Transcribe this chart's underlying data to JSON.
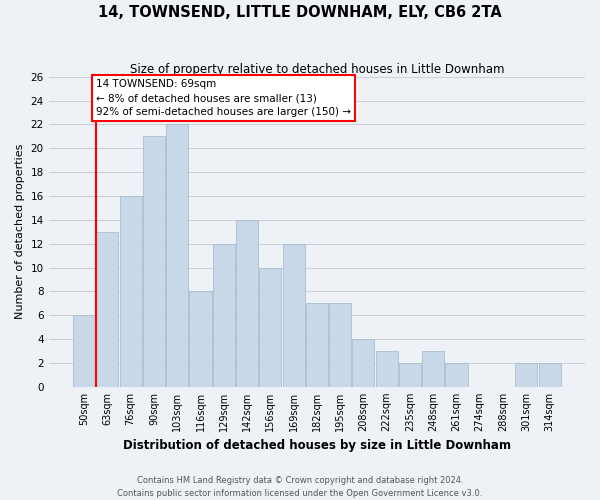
{
  "title": "14, TOWNSEND, LITTLE DOWNHAM, ELY, CB6 2TA",
  "subtitle": "Size of property relative to detached houses in Little Downham",
  "xlabel": "Distribution of detached houses by size in Little Downham",
  "ylabel": "Number of detached properties",
  "bar_labels": [
    "50sqm",
    "63sqm",
    "76sqm",
    "90sqm",
    "103sqm",
    "116sqm",
    "129sqm",
    "142sqm",
    "156sqm",
    "169sqm",
    "182sqm",
    "195sqm",
    "208sqm",
    "222sqm",
    "235sqm",
    "248sqm",
    "261sqm",
    "274sqm",
    "288sqm",
    "301sqm",
    "314sqm"
  ],
  "bar_values": [
    6,
    13,
    16,
    21,
    22,
    8,
    12,
    14,
    10,
    12,
    7,
    7,
    4,
    3,
    2,
    3,
    2,
    0,
    0,
    2,
    2
  ],
  "bar_color": "#c8d8e8",
  "bar_edge_color": "#a8bece",
  "grid_color": "#c8d0d8",
  "background_color": "#eef2f6",
  "annotation_line1": "14 TOWNSEND: 69sqm",
  "annotation_line2": "← 8% of detached houses are smaller (13)",
  "annotation_line3": "92% of semi-detached houses are larger (150) →",
  "red_line_bar_index": 1,
  "ylim": [
    0,
    26
  ],
  "yticks": [
    0,
    2,
    4,
    6,
    8,
    10,
    12,
    14,
    16,
    18,
    20,
    22,
    24,
    26
  ],
  "footer_line1": "Contains HM Land Registry data © Crown copyright and database right 2024.",
  "footer_line2": "Contains public sector information licensed under the Open Government Licence v3.0."
}
